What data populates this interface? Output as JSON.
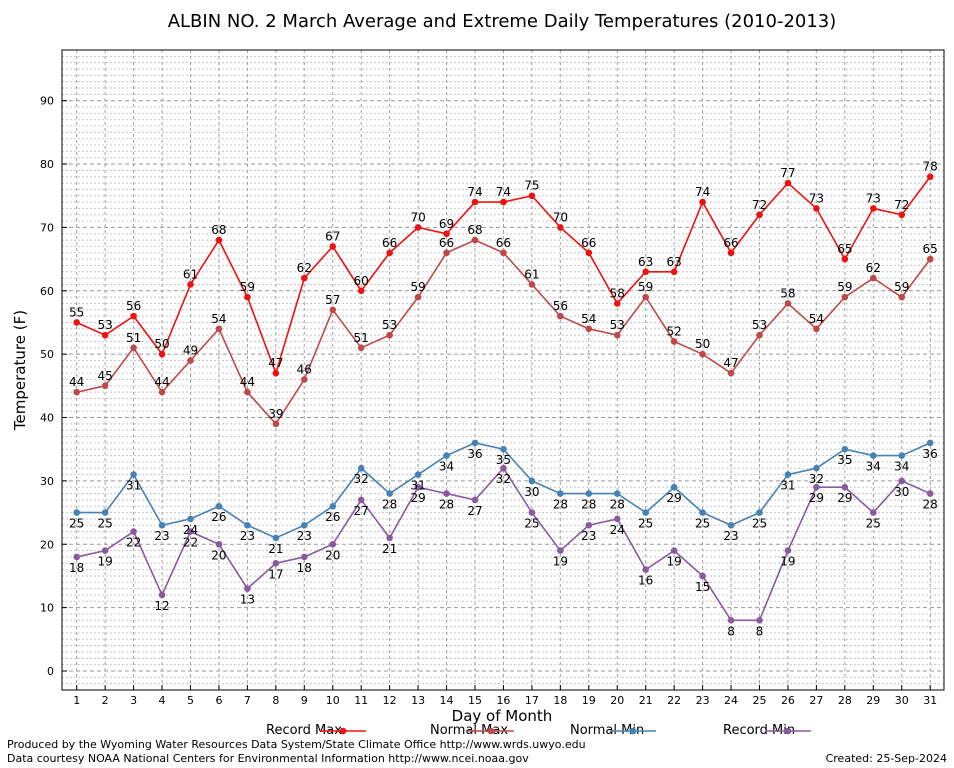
{
  "chart_data": {
    "type": "line",
    "title": "ALBIN NO. 2 March Average and Extreme Daily Temperatures (2010-2013)",
    "xlabel": "Day of Month",
    "ylabel": "Temperature (F)",
    "ylim": [
      -3,
      98
    ],
    "yticks": [
      0,
      10,
      20,
      30,
      40,
      50,
      60,
      70,
      80,
      90
    ],
    "x": [
      1,
      2,
      3,
      4,
      5,
      6,
      7,
      8,
      9,
      10,
      11,
      12,
      13,
      14,
      15,
      16,
      17,
      18,
      19,
      20,
      21,
      22,
      23,
      24,
      25,
      26,
      27,
      28,
      29,
      30,
      31
    ],
    "grid": true,
    "legend_position": "bottom",
    "series": [
      {
        "name": "Record Max",
        "color": "#ee1111",
        "values": [
          55,
          53,
          56,
          50,
          61,
          68,
          59,
          47,
          62,
          67,
          60,
          66,
          70,
          69,
          74,
          74,
          75,
          70,
          66,
          58,
          63,
          63,
          74,
          66,
          72,
          77,
          73,
          65,
          73,
          72,
          78
        ]
      },
      {
        "name": "Normal Max",
        "color": "#c04848",
        "values": [
          44,
          45,
          51,
          44,
          49,
          54,
          44,
          39,
          46,
          57,
          51,
          53,
          59,
          66,
          68,
          66,
          61,
          56,
          54,
          53,
          59,
          52,
          50,
          47,
          53,
          58,
          54,
          59,
          62,
          59,
          65
        ]
      },
      {
        "name": "Normal Min",
        "color": "#4682b4",
        "values": [
          25,
          25,
          31,
          23,
          24,
          26,
          23,
          21,
          23,
          26,
          32,
          28,
          31,
          34,
          36,
          35,
          30,
          28,
          28,
          28,
          25,
          29,
          25,
          23,
          25,
          31,
          32,
          35,
          34,
          34,
          36
        ]
      },
      {
        "name": "Record Min",
        "color": "#8a5a9e",
        "values": [
          18,
          19,
          22,
          12,
          22,
          20,
          13,
          17,
          18,
          20,
          27,
          21,
          29,
          28,
          27,
          32,
          25,
          19,
          23,
          24,
          16,
          19,
          15,
          8,
          8,
          19,
          29,
          29,
          25,
          30,
          28
        ]
      }
    ]
  },
  "credits": {
    "produced": "Produced by the Wyoming Water Resources Data System/State Climate Office http://www.wrds.uwyo.edu",
    "courtesy": "Data courtesy NOAA National Centers for Environmental Information http://www.ncei.noaa.gov",
    "created": "Created:  25-Sep-2024"
  }
}
